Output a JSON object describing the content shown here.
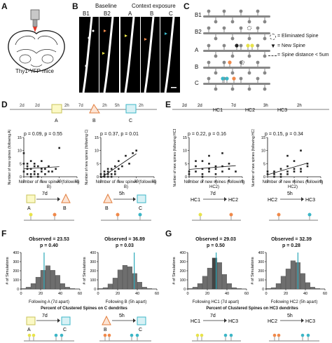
{
  "panels": {
    "A": {
      "letter": "A",
      "mouse_label": "Thy1-YFP mice"
    },
    "B": {
      "letter": "B",
      "baseline": "Baseline",
      "context": "Context exposure",
      "columns": [
        "B1",
        "B2",
        "A",
        "B",
        "C"
      ]
    },
    "C": {
      "letter": "C",
      "rows": [
        "B1",
        "B2",
        "A",
        "B",
        "C"
      ],
      "legend": {
        "eliminated": "= Eliminated Spine",
        "new": "= New Spine",
        "distance": "= Spine distance < 5um"
      }
    },
    "D": {
      "letter": "D",
      "timeline": [
        "2d",
        "2d",
        "2h",
        "7d",
        "2h",
        "5h",
        "2h"
      ],
      "contexts": [
        "A",
        "B",
        "C"
      ],
      "plot1": {
        "stat": "p = 0.09, p = 0.55",
        "ylabel": "Number of new spines (following A)",
        "xlabel": "Number of new spines (following B)",
        "xticks": [
          "0",
          "5",
          "10",
          "15"
        ],
        "yticks": [
          "0",
          "5",
          "10",
          "15"
        ]
      },
      "plot2": {
        "stat": "p = 0.37, p = 0.01",
        "ylabel": "Number of new spines (following C)",
        "xlabel": "Number of new spines (following B)",
        "xticks": [
          "0",
          "5",
          "10",
          "15"
        ],
        "yticks": [
          "0",
          "5",
          "10",
          "15"
        ]
      },
      "interval1": {
        "label": "7d",
        "from": "A",
        "to": "B"
      },
      "interval2": {
        "label": "5h",
        "from": "B",
        "to": "C"
      }
    },
    "E": {
      "letter": "E",
      "timeline": [
        "2d",
        "2d",
        "HC1",
        "7d",
        "HC2",
        "3h",
        "HC3",
        "2h"
      ],
      "plot1": {
        "stat": "p = 0.22, p = 0.16",
        "ylabel": "Number of new spines (following HC1)",
        "xlabel": "Number of new spines (following HC2)",
        "xticks": [
          "0",
          "2",
          "4",
          "6",
          "8"
        ],
        "yticks": [
          "0",
          "5",
          "10",
          "15"
        ]
      },
      "plot2": {
        "stat": "p = 0.15, p = 0.34",
        "ylabel": "Number of new spines (following HC3)",
        "xlabel": "Number of new spines (following HC2)",
        "xticks": [
          "0",
          "2",
          "4",
          "6",
          "8"
        ],
        "yticks": [
          "0",
          "5",
          "10",
          "15"
        ]
      },
      "interval1": {
        "label": "7d",
        "from": "HC1",
        "to": "HC2"
      },
      "interval2": {
        "label": "5h",
        "from": "HC2",
        "to": "HC3"
      }
    },
    "F": {
      "letter": "F",
      "hist1": {
        "observed": "Observed = 23.53",
        "p": "p = 0.40",
        "xlabel": "Following A (7d apart)",
        "ylabel": "# of Simulations"
      },
      "hist2": {
        "observed": "Observed = 36.89",
        "p": "p = 0.03",
        "xlabel": "Following B (5h apart)",
        "ylabel": "# of Simulations"
      },
      "xaxis_title": "Percent of Clustered Spines on C dendrites",
      "interval1": {
        "label": "7d",
        "from": "A",
        "to": "C"
      },
      "interval2": {
        "label": "5h",
        "from": "B",
        "to": "C"
      }
    },
    "G": {
      "letter": "G",
      "hist1": {
        "observed": "Observed = 29.03",
        "p": "p = 0.50",
        "xlabel": "Following HC1 (7d apart)",
        "ylabel": "# of Simulations"
      },
      "hist2": {
        "observed": "Observed = 32.39",
        "p": "p = 0.28",
        "xlabel": "Following HC2 (5h apart)",
        "ylabel": "# of Simulations"
      },
      "xaxis_title": "Percent of Clustered Spines on HC3 dendrites",
      "interval1": {
        "label": "7d",
        "from": "HC1",
        "to": "HC3"
      },
      "interval2": {
        "label": "5h",
        "from": "HC2",
        "to": "HC3"
      }
    }
  },
  "colors": {
    "accent_yellow": "#e8e34a",
    "accent_orange": "#f0894a",
    "accent_cyan": "#3bb6c7",
    "observed_line": "#2aa8b8",
    "bar": "#6e6e6e",
    "bar_highlight": "#444444"
  },
  "chart_data": [
    {
      "type": "scatter",
      "panel": "D-left",
      "xlabel": "Number of new spines (following B)",
      "ylabel": "Number of new spines (following A)",
      "xlim": [
        0,
        15
      ],
      "ylim": [
        0,
        15
      ],
      "x": [
        0,
        0,
        1,
        1,
        1,
        2,
        2,
        2,
        3,
        3,
        3,
        4,
        4,
        5,
        5,
        5,
        6,
        6,
        7,
        7,
        8,
        9,
        10,
        1,
        2,
        0,
        3,
        4
      ],
      "y": [
        2,
        9,
        1,
        4,
        5,
        0,
        3,
        6,
        1,
        2,
        5,
        0,
        4,
        2,
        3,
        6,
        1,
        3,
        2,
        4,
        2,
        3,
        11,
        3,
        1,
        5,
        4,
        1
      ]
    },
    {
      "type": "scatter",
      "panel": "D-right",
      "xlabel": "Number of new spines (following B)",
      "ylabel": "Number of new spines (following C)",
      "xlim": [
        0,
        15
      ],
      "ylim": [
        0,
        15
      ],
      "x": [
        0,
        1,
        1,
        2,
        2,
        3,
        3,
        4,
        4,
        5,
        5,
        6,
        7,
        8,
        9,
        10,
        1,
        2,
        3,
        0,
        2,
        4
      ],
      "y": [
        0,
        1,
        0,
        2,
        1,
        3,
        0,
        2,
        4,
        3,
        6,
        4,
        8,
        5,
        9,
        10,
        2,
        0,
        1,
        1,
        3,
        1
      ]
    },
    {
      "type": "scatter",
      "panel": "E-left",
      "xlabel": "Number of new spines (following HC2)",
      "ylabel": "Number of new spines (following HC1)",
      "xlim": [
        0,
        8
      ],
      "ylim": [
        0,
        15
      ],
      "x": [
        0,
        1,
        1,
        2,
        2,
        2,
        3,
        3,
        3,
        4,
        4,
        5,
        5,
        6,
        1,
        2,
        3,
        4,
        0,
        5,
        6,
        7
      ],
      "y": [
        1,
        2,
        4,
        1,
        3,
        6,
        2,
        5,
        8,
        3,
        4,
        2,
        9,
        5,
        6,
        0,
        3,
        1,
        2,
        4,
        3,
        2
      ]
    },
    {
      "type": "scatter",
      "panel": "E-right",
      "xlabel": "Number of new spines (following HC2)",
      "ylabel": "Number of new spines (following HC3)",
      "xlim": [
        0,
        8
      ],
      "ylim": [
        0,
        15
      ],
      "x": [
        0,
        1,
        1,
        2,
        2,
        3,
        3,
        3,
        4,
        4,
        5,
        5,
        6,
        1,
        2,
        3,
        4,
        5,
        0,
        6
      ],
      "y": [
        1,
        0,
        2,
        1,
        3,
        2,
        4,
        8,
        3,
        6,
        2,
        10,
        4,
        1,
        0,
        1,
        2,
        3,
        2,
        5
      ]
    },
    {
      "type": "bar",
      "panel": "F-left",
      "categories": [
        "0",
        "5",
        "10",
        "15",
        "20",
        "25",
        "30",
        "35",
        "40",
        "45",
        "50"
      ],
      "values": [
        5,
        20,
        60,
        130,
        205,
        255,
        205,
        150,
        60,
        20,
        5
      ],
      "observed": 23.53,
      "xlim": [
        0,
        60
      ],
      "ylim": [
        0,
        400
      ]
    },
    {
      "type": "bar",
      "panel": "F-right",
      "categories": [
        "0",
        "5",
        "10",
        "15",
        "20",
        "25",
        "30",
        "35",
        "40",
        "45",
        "50"
      ],
      "values": [
        5,
        15,
        55,
        120,
        210,
        260,
        245,
        170,
        75,
        20,
        5
      ],
      "observed": 36.89,
      "xlim": [
        0,
        60
      ],
      "ylim": [
        0,
        400
      ]
    },
    {
      "type": "bar",
      "panel": "G-left",
      "categories": [
        "0",
        "5",
        "10",
        "15",
        "20",
        "25",
        "30",
        "35",
        "40",
        "45",
        "50"
      ],
      "values": [
        5,
        20,
        60,
        140,
        230,
        340,
        290,
        160,
        60,
        15,
        5
      ],
      "observed": 29.03,
      "xlim": [
        0,
        60
      ],
      "ylim": [
        0,
        400
      ]
    },
    {
      "type": "bar",
      "panel": "G-right",
      "categories": [
        "0",
        "5",
        "10",
        "15",
        "20",
        "25",
        "30",
        "35",
        "40",
        "45",
        "50"
      ],
      "values": [
        5,
        15,
        60,
        140,
        220,
        310,
        290,
        170,
        70,
        20,
        5
      ],
      "observed": 32.39,
      "xlim": [
        0,
        60
      ],
      "ylim": [
        0,
        400
      ]
    }
  ]
}
